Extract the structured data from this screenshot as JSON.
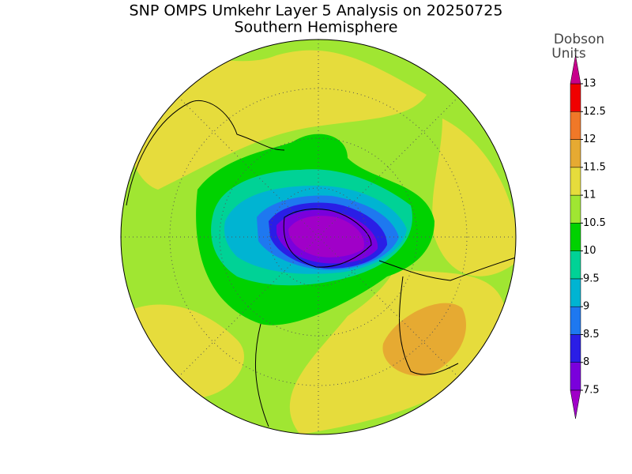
{
  "title": "SNP OMPS Umkehr Layer 5 Analysis on 20250725",
  "subtitle": "Southern Hemisphere",
  "colorbar": {
    "unit_line1": "Dobson",
    "unit_line2": "Units",
    "ticks": [
      7.5,
      8,
      8.5,
      9,
      9.5,
      10,
      10.5,
      11,
      11.5,
      12,
      12.5,
      13
    ],
    "colors": [
      "#7a00dc",
      "#2a1ee6",
      "#1e78f0",
      "#00b4d2",
      "#00d296",
      "#00d200",
      "#a0e632",
      "#e6dc3c",
      "#e6aa32",
      "#f07828",
      "#f00000"
    ],
    "under_color": "#a000c8",
    "over_color": "#c8008c"
  }
}
